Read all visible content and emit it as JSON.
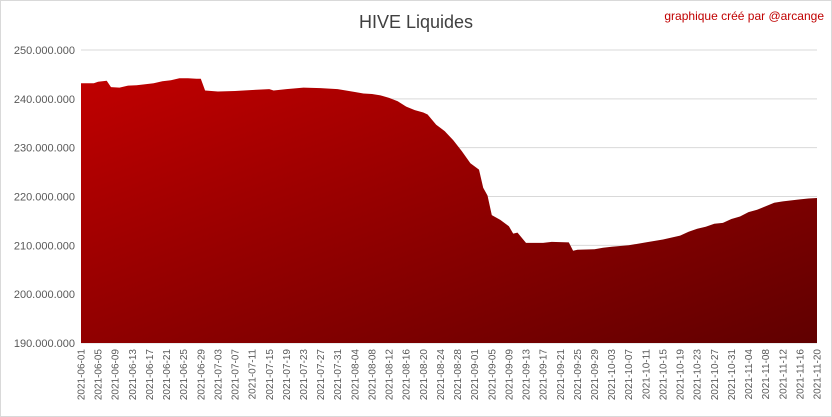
{
  "chart_title": "HIVE Liquides",
  "credit": "graphique créé par @arcange",
  "colors": {
    "area_top": "#c00000",
    "area_bottom": "#600000",
    "grid": "#d9d9d9",
    "axis_text": "#595959",
    "credit": "#c00000"
  },
  "chart_data": {
    "type": "area",
    "title": "HIVE Liquides",
    "xlabel": "",
    "ylabel": "",
    "ylim": [
      190000000,
      250000000
    ],
    "yticks": [
      190000000,
      200000000,
      210000000,
      220000000,
      230000000,
      240000000,
      250000000
    ],
    "ytick_labels": [
      "190.000.000",
      "200.000.000",
      "210.000.000",
      "220.000.000",
      "230.000.000",
      "240.000.000",
      "250.000.000"
    ],
    "grid": true,
    "x_start": "2021-06-01",
    "x_end": "2021-11-20",
    "xtick_labels": [
      "2021-06-01",
      "2021-06-05",
      "2021-06-09",
      "2021-06-13",
      "2021-06-17",
      "2021-06-21",
      "2021-06-25",
      "2021-06-29",
      "2021-07-03",
      "2021-07-07",
      "2021-07-11",
      "2021-07-15",
      "2021-07-19",
      "2021-07-23",
      "2021-07-27",
      "2021-07-31",
      "2021-08-04",
      "2021-08-08",
      "2021-08-12",
      "2021-08-16",
      "2021-08-20",
      "2021-08-24",
      "2021-08-28",
      "2021-09-01",
      "2021-09-05",
      "2021-09-09",
      "2021-09-13",
      "2021-09-17",
      "2021-09-21",
      "2021-09-25",
      "2021-09-29",
      "2021-10-03",
      "2021-10-07",
      "2021-10-11",
      "2021-10-15",
      "2021-10-19",
      "2021-10-23",
      "2021-10-27",
      "2021-10-31",
      "2021-11-04",
      "2021-11-08",
      "2021-11-12",
      "2021-11-16",
      "2021-11-20"
    ],
    "points": [
      [
        "2021-06-01",
        243200000
      ],
      [
        "2021-06-04",
        243200000
      ],
      [
        "2021-06-05",
        243500000
      ],
      [
        "2021-06-07",
        243700000
      ],
      [
        "2021-06-08",
        242400000
      ],
      [
        "2021-06-10",
        242300000
      ],
      [
        "2021-06-12",
        242700000
      ],
      [
        "2021-06-14",
        242800000
      ],
      [
        "2021-06-16",
        243000000
      ],
      [
        "2021-06-18",
        243200000
      ],
      [
        "2021-06-20",
        243600000
      ],
      [
        "2021-06-22",
        243800000
      ],
      [
        "2021-06-24",
        244200000
      ],
      [
        "2021-06-26",
        244200000
      ],
      [
        "2021-06-28",
        244100000
      ],
      [
        "2021-06-29",
        244100000
      ],
      [
        "2021-06-30",
        241700000
      ],
      [
        "2021-07-03",
        241500000
      ],
      [
        "2021-07-07",
        241600000
      ],
      [
        "2021-07-11",
        241800000
      ],
      [
        "2021-07-15",
        242000000
      ],
      [
        "2021-07-16",
        241700000
      ],
      [
        "2021-07-19",
        242000000
      ],
      [
        "2021-07-23",
        242300000
      ],
      [
        "2021-07-27",
        242200000
      ],
      [
        "2021-07-31",
        242000000
      ],
      [
        "2021-08-04",
        241400000
      ],
      [
        "2021-08-06",
        241100000
      ],
      [
        "2021-08-08",
        241000000
      ],
      [
        "2021-08-10",
        240700000
      ],
      [
        "2021-08-12",
        240200000
      ],
      [
        "2021-08-14",
        239500000
      ],
      [
        "2021-08-16",
        238400000
      ],
      [
        "2021-08-18",
        237700000
      ],
      [
        "2021-08-20",
        237200000
      ],
      [
        "2021-08-21",
        236800000
      ],
      [
        "2021-08-23",
        234700000
      ],
      [
        "2021-08-25",
        233400000
      ],
      [
        "2021-08-27",
        231500000
      ],
      [
        "2021-08-29",
        229300000
      ],
      [
        "2021-08-31",
        226800000
      ],
      [
        "2021-09-02",
        225500000
      ],
      [
        "2021-09-03",
        221800000
      ],
      [
        "2021-09-04",
        220200000
      ],
      [
        "2021-09-05",
        216200000
      ],
      [
        "2021-09-07",
        215200000
      ],
      [
        "2021-09-09",
        213900000
      ],
      [
        "2021-09-10",
        212400000
      ],
      [
        "2021-09-11",
        212600000
      ],
      [
        "2021-09-13",
        210500000
      ],
      [
        "2021-09-17",
        210500000
      ],
      [
        "2021-09-19",
        210700000
      ],
      [
        "2021-09-23",
        210600000
      ],
      [
        "2021-09-24",
        208900000
      ],
      [
        "2021-09-25",
        209100000
      ],
      [
        "2021-09-29",
        209200000
      ],
      [
        "2021-10-01",
        209500000
      ],
      [
        "2021-10-03",
        209700000
      ],
      [
        "2021-10-07",
        210000000
      ],
      [
        "2021-10-11",
        210600000
      ],
      [
        "2021-10-15",
        211200000
      ],
      [
        "2021-10-19",
        212000000
      ],
      [
        "2021-10-21",
        212800000
      ],
      [
        "2021-10-23",
        213400000
      ],
      [
        "2021-10-25",
        213800000
      ],
      [
        "2021-10-27",
        214400000
      ],
      [
        "2021-10-29",
        214600000
      ],
      [
        "2021-10-31",
        215400000
      ],
      [
        "2021-11-02",
        215900000
      ],
      [
        "2021-11-04",
        216800000
      ],
      [
        "2021-11-06",
        217300000
      ],
      [
        "2021-11-08",
        218000000
      ],
      [
        "2021-11-10",
        218700000
      ],
      [
        "2021-11-12",
        219000000
      ],
      [
        "2021-11-14",
        219200000
      ],
      [
        "2021-11-16",
        219400000
      ],
      [
        "2021-11-18",
        219600000
      ],
      [
        "2021-11-20",
        219700000
      ]
    ]
  }
}
